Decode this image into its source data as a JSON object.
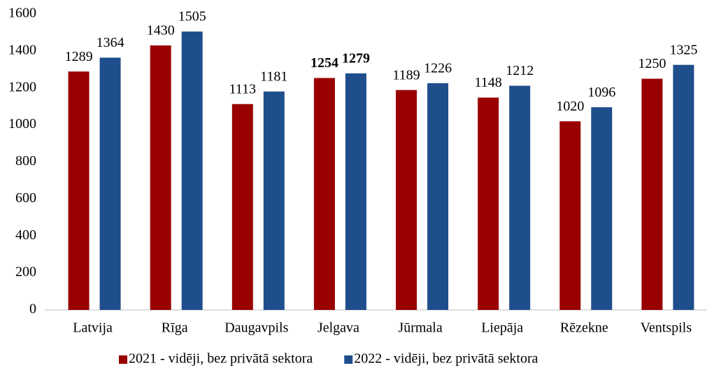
{
  "chart_data": {
    "type": "bar",
    "categories": [
      "Latvija",
      "Rīga",
      "Daugavpils",
      "Jelgava",
      "Jūrmala",
      "Liepāja",
      "Rēzekne",
      "Ventspils"
    ],
    "series": [
      {
        "name": "2021 - vidēji, bez privātā sektora",
        "color": "#990000",
        "values": [
          1289,
          1430,
          1113,
          1254,
          1189,
          1148,
          1020,
          1250
        ]
      },
      {
        "name": "2022 - vidēji, bez privātā sektora",
        "color": "#1f4e8c",
        "values": [
          1364,
          1505,
          1181,
          1279,
          1226,
          1212,
          1096,
          1325
        ]
      }
    ],
    "ylim": [
      0,
      1600
    ],
    "yticks": [
      0,
      200,
      400,
      600,
      800,
      1000,
      1200,
      1400,
      1600
    ],
    "grid": false,
    "legend": "bottom",
    "bold_category": "Jelgava"
  }
}
